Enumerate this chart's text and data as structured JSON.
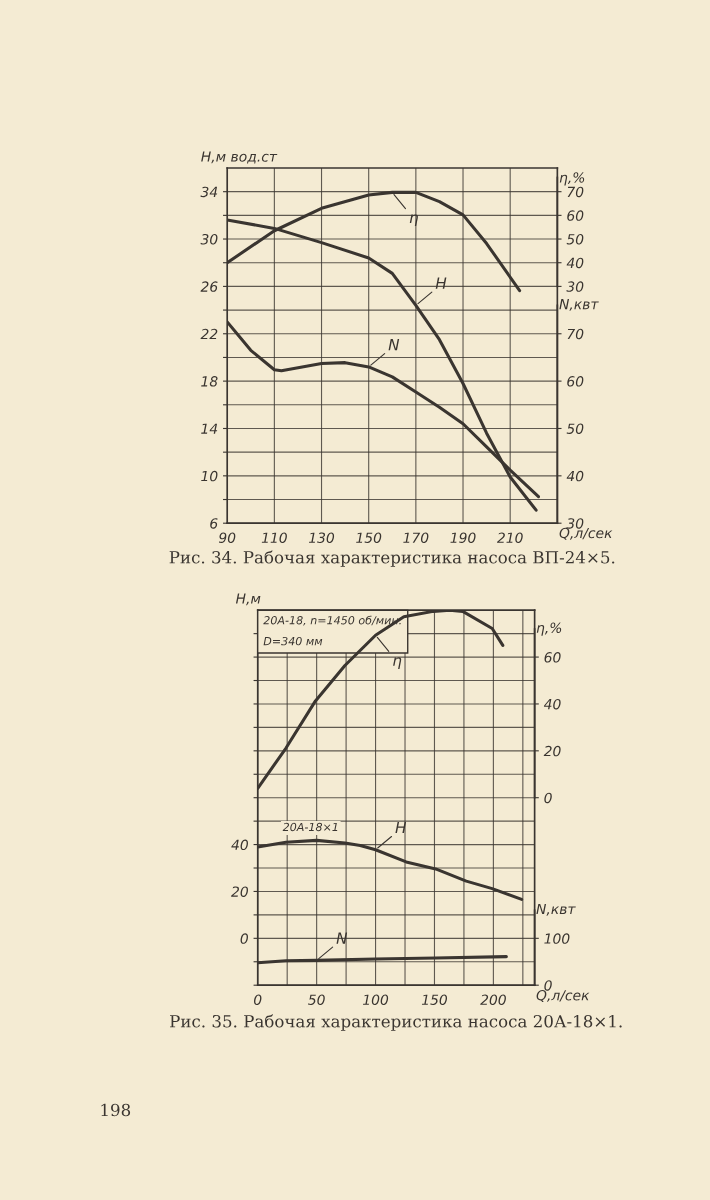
{
  "chart_data": [
    {
      "type": "line",
      "title": "Рис. 34. Рабочая характеристика насоса ВП-24×5.",
      "xlabel": "Q,л/сек",
      "ylabel": "Н,м вод.ст",
      "y2label": "η,%",
      "y3label": "N,квт",
      "xlim": [
        90,
        230
      ],
      "xticks": [
        90,
        110,
        130,
        150,
        170,
        190,
        210
      ],
      "ylim": [
        6,
        36
      ],
      "yticks": [
        6,
        {
          "value": 8,
          "label": null
        },
        10,
        {
          "value": 12,
          "label": null
        },
        14,
        {
          "value": 16,
          "label": null
        },
        18,
        {
          "value": 20,
          "label": null
        },
        22,
        {
          "value": 24,
          "label": null
        },
        26,
        {
          "value": 28,
          "label": null
        },
        30,
        {
          "value": 32,
          "label": null
        },
        34
      ],
      "y2lim": [
        -70,
        80
      ],
      "y2ticks": [
        30,
        40,
        50,
        60,
        70
      ],
      "y3lim": [
        30,
        105
      ],
      "y3ticks": [
        30,
        40,
        50,
        60,
        70
      ],
      "grid": true,
      "marker": "none",
      "line_style": "solid",
      "series": [
        {
          "name": "η",
          "color": "#3a3530",
          "axis": "y2",
          "x": [
            90,
            110,
            130,
            150,
            160,
            170,
            180,
            190,
            200,
            214
          ],
          "values": [
            40,
            53.5,
            63,
            68.6,
            69.7,
            69.7,
            65.8,
            60.2,
            48.1,
            28.2
          ]
        },
        {
          "name": "H",
          "color": "#3a3530",
          "axis": "y",
          "x": [
            90,
            110,
            130,
            150,
            160,
            170,
            180,
            190,
            200,
            210,
            221
          ],
          "values": [
            31.6,
            30.9,
            29.7,
            28.4,
            27.1,
            24.4,
            21.5,
            17.8,
            13.6,
            9.9,
            7.1
          ]
        },
        {
          "name": "N",
          "color": "#3a3530",
          "axis": "y3",
          "x": [
            90,
            100,
            110,
            113,
            130,
            140,
            150,
            160,
            170,
            180,
            190,
            200,
            210,
            222
          ],
          "values": [
            72.5,
            66.5,
            62.4,
            62.2,
            63.7,
            63.9,
            63.0,
            60.9,
            57.7,
            54.5,
            51.0,
            46.1,
            41.2,
            35.6
          ]
        }
      ]
    },
    {
      "type": "line",
      "title": "Рис. 35. Рабочая характеристика насоса 20А-18×1.",
      "subtitle": "20А-18, n=1450 об/мин.\nD=340 мм",
      "xlabel": "Q,л/сек",
      "ylabel": "Н,м",
      "y2label": "η,%",
      "y3label": "N,квт",
      "xlim": [
        0,
        235
      ],
      "xticks": [
        0,
        {
          "value": 25,
          "label": null
        },
        50,
        {
          "value": 75,
          "label": null
        },
        100,
        {
          "value": 125,
          "label": null
        },
        150,
        {
          "value": 175,
          "label": null
        },
        200,
        {
          "value": 225,
          "label": null
        }
      ],
      "ylim": [
        -20,
        140
      ],
      "yticks": [
        {
          "value": -20,
          "label": null
        },
        {
          "value": -10,
          "label": null
        },
        0,
        {
          "value": 10,
          "label": null
        },
        20,
        {
          "value": 30,
          "label": null
        },
        40,
        {
          "value": 50,
          "label": null
        },
        {
          "value": 60,
          "label": null
        },
        {
          "value": 70,
          "label": null
        },
        {
          "value": 80,
          "label": null
        },
        {
          "value": 90,
          "label": null
        },
        {
          "value": 100,
          "label": null
        },
        {
          "value": 110,
          "label": null
        },
        {
          "value": 120,
          "label": null
        },
        {
          "value": 130,
          "label": null
        }
      ],
      "y2lim": [
        -80,
        80
      ],
      "y2ticks": [
        0,
        20,
        40,
        60
      ],
      "y3lim": [
        0,
        800
      ],
      "y3ticks": [
        0,
        100
      ],
      "grid": true,
      "marker": "none",
      "line_style": "solid",
      "annotations": [
        "20А-18×1",
        "198"
      ],
      "series": [
        {
          "name": "η",
          "color": "#3a3530",
          "axis": "y2",
          "x": [
            0,
            24,
            49,
            74,
            100,
            124,
            149,
            163,
            174,
            199,
            208
          ],
          "values": [
            4,
            21.2,
            41.3,
            56.4,
            69.3,
            77.2,
            79.5,
            80,
            79.5,
            72.2,
            65
          ]
        },
        {
          "name": "H",
          "color": "#3a3530",
          "axis": "y",
          "x": [
            0,
            24,
            50,
            74,
            87,
            100,
            126,
            151,
            177,
            199,
            224
          ],
          "values": [
            39,
            41,
            41.8,
            40.7,
            39.6,
            37.8,
            32.6,
            29.6,
            24.4,
            21.2,
            16.6
          ]
        },
        {
          "name": "N",
          "color": "#3a3530",
          "axis": "y3",
          "x": [
            0,
            24,
            50,
            100,
            151,
            211
          ],
          "values": [
            48,
            52,
            53,
            56,
            58,
            61
          ]
        }
      ]
    }
  ]
}
